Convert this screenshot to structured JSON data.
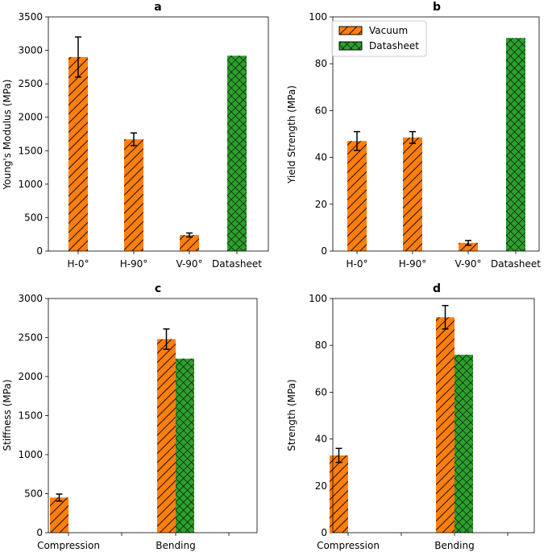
{
  "colors": {
    "vacuum": "#ff7f0e",
    "datasheet": "#2ca02c",
    "edge": "#000000"
  },
  "legend": {
    "entries": [
      {
        "key": "vacuum",
        "label": "Vacuum"
      },
      {
        "key": "datasheet",
        "label": "Datasheet"
      }
    ]
  },
  "chart_data": [
    {
      "panel": "a",
      "type": "bar",
      "title": "a",
      "xlabel": "",
      "ylabel": "Young's Modulus (MPa)",
      "ylim": [
        0,
        3500
      ],
      "yticks": [
        0,
        500,
        1000,
        1500,
        2000,
        2500,
        3000,
        3500
      ],
      "categories": [
        "H-0°",
        "H-90°",
        "V-90°",
        "Datasheet"
      ],
      "series": [
        {
          "name": "Vacuum",
          "color_key": "vacuum",
          "values": [
            2900,
            1670,
            240,
            null
          ],
          "errors": [
            300,
            95,
            30,
            null
          ]
        },
        {
          "name": "Datasheet",
          "color_key": "datasheet",
          "values": [
            null,
            null,
            null,
            2920
          ],
          "errors": [
            null,
            null,
            null,
            null
          ]
        }
      ]
    },
    {
      "panel": "b",
      "type": "bar",
      "title": "b",
      "xlabel": "",
      "ylabel": "Yield Strength (MPa)",
      "ylim": [
        0,
        100
      ],
      "yticks": [
        0,
        20,
        40,
        60,
        80,
        100
      ],
      "legend_position": "top-left",
      "categories": [
        "H-0°",
        "H-90°",
        "V-90°",
        "Datasheet"
      ],
      "series": [
        {
          "name": "Vacuum",
          "color_key": "vacuum",
          "values": [
            47,
            48.5,
            3.5,
            null
          ],
          "errors": [
            4,
            2.5,
            1,
            null
          ]
        },
        {
          "name": "Datasheet",
          "color_key": "datasheet",
          "values": [
            null,
            null,
            null,
            91
          ],
          "errors": [
            null,
            null,
            null,
            null
          ]
        }
      ]
    },
    {
      "panel": "c",
      "type": "bar",
      "title": "c",
      "xlabel": "",
      "ylabel": "Stiffness (MPa)",
      "ylim": [
        0,
        3000
      ],
      "yticks": [
        0,
        500,
        1000,
        1500,
        2000,
        2500,
        3000
      ],
      "categories": [
        "Compression",
        "Bending"
      ],
      "series": [
        {
          "name": "Vacuum",
          "color_key": "vacuum",
          "values": [
            450,
            2480
          ],
          "errors": [
            45,
            130
          ]
        },
        {
          "name": "Datasheet",
          "color_key": "datasheet",
          "values": [
            null,
            2230
          ],
          "errors": [
            null,
            null
          ]
        }
      ]
    },
    {
      "panel": "d",
      "type": "bar",
      "title": "d",
      "xlabel": "",
      "ylabel": "Strength (MPa)",
      "ylim": [
        0,
        100
      ],
      "yticks": [
        0,
        20,
        40,
        60,
        80,
        100
      ],
      "categories": [
        "Compression",
        "Bending"
      ],
      "series": [
        {
          "name": "Vacuum",
          "color_key": "vacuum",
          "values": [
            33,
            92
          ],
          "errors": [
            3,
            5
          ]
        },
        {
          "name": "Datasheet",
          "color_key": "datasheet",
          "values": [
            null,
            76
          ],
          "errors": [
            null,
            null
          ]
        }
      ]
    }
  ]
}
